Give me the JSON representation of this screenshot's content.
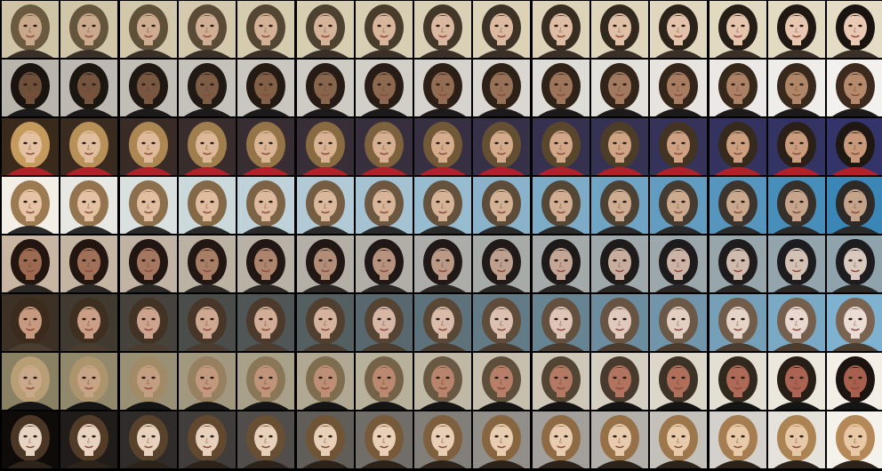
{
  "grid": {
    "rows": 8,
    "cols": 15,
    "row_palettes": [
      {
        "bg_start": "#cfc4a6",
        "bg_end": "#e4dcc4",
        "hair_start": "#6a5a40",
        "hair_end": "#1a1410",
        "skin_start": "#c9a78a",
        "skin_end": "#e9c9b3",
        "shirt": "#3a3028"
      },
      {
        "bg_start": "#b9b5ad",
        "bg_end": "#f3f1ee",
        "hair_start": "#1a1410",
        "hair_end": "#3b2a1d",
        "skin_start": "#6e4f3a",
        "skin_end": "#b58a6c",
        "shirt": "#1c1a1a"
      },
      {
        "bg_start": "#3a2a1b",
        "bg_end": "#33356a",
        "hair_start": "#c49a5d",
        "hair_end": "#1e1712",
        "skin_start": "#e2c0a0",
        "skin_end": "#c7997a",
        "shirt": "#b0212a"
      },
      {
        "bg_start": "#f4efe6",
        "bg_end": "#3a86b7",
        "hair_start": "#9c7a52",
        "hair_end": "#2d2a27",
        "skin_start": "#e6c3a4",
        "skin_end": "#c5a38a",
        "shirt": "#2a2a2a"
      },
      {
        "bg_start": "#c8b6a2",
        "bg_end": "#8fa3ad",
        "hair_start": "#231510",
        "hair_end": "#1d1d1f",
        "skin_start": "#9c6a50",
        "skin_end": "#d8c8bd",
        "shirt": "#2a2725"
      },
      {
        "bg_start": "#3c3124",
        "bg_end": "#7fb2d1",
        "hair_start": "#3a2b1d",
        "hair_end": "#7a6451",
        "skin_start": "#c79a80",
        "skin_end": "#eadcd4",
        "shirt": "#4a3d30"
      },
      {
        "bg_start": "#8a8063",
        "bg_end": "#f3efe6",
        "hair_start": "#b79e74",
        "hair_end": "#1b1410",
        "skin_start": "#c9a98a",
        "skin_end": "#a95f4d",
        "shirt": "#151515"
      },
      {
        "bg_start": "#0e0b09",
        "bg_end": "#f5f2ec",
        "hair_start": "#4a3624",
        "hair_end": "#b48957",
        "skin_start": "#e8d4c2",
        "skin_end": "#e8c8a5",
        "shirt": "#2c231b"
      }
    ]
  }
}
